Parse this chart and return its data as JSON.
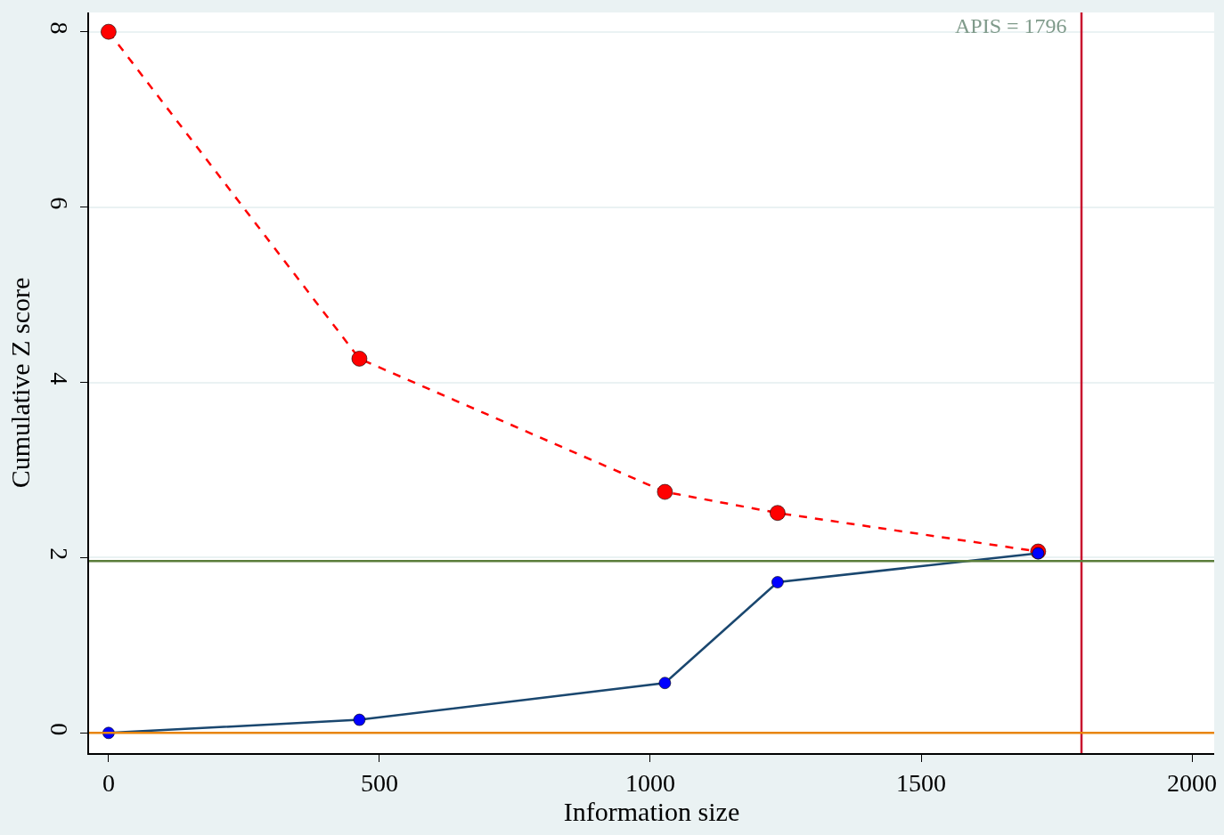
{
  "chart_data": {
    "type": "line",
    "xlabel": "Information size",
    "ylabel": "Cumulative Z score",
    "x": [
      0,
      463,
      1027,
      1235,
      1716
    ],
    "xlim": [
      -36,
      2041
    ],
    "xticks": [
      0,
      500,
      1000,
      1500,
      2000
    ],
    "ylim": [
      -0.23,
      8.22
    ],
    "yticks": [
      0,
      2,
      4,
      6,
      8
    ],
    "grid": "y",
    "marker": "circle",
    "series": [
      {
        "color": "#ff0000",
        "line_style": "dashed",
        "values": [
          8,
          4.27,
          2.75,
          2.51,
          2.07
        ]
      },
      {
        "color": "#1a476f",
        "line_style": "solid",
        "colors": [
          "#0000ff",
          "#0000ff",
          "#0000ff",
          "#0000ff",
          "#0000ff"
        ],
        "values": [
          0,
          0.15,
          0.57,
          1.72,
          2.05
        ]
      }
    ],
    "ref_lines": [
      {
        "axis": "x",
        "value": 1796,
        "label": "APIS = 1796",
        "color": "#c8102e",
        "line_style": "solid"
      },
      {
        "axis": "y",
        "value": 1.96,
        "color": "#5a7d3a",
        "line_style": "solid"
      },
      {
        "axis": "y",
        "value": 0,
        "color": "#e8850c",
        "line_style": "solid"
      }
    ]
  }
}
